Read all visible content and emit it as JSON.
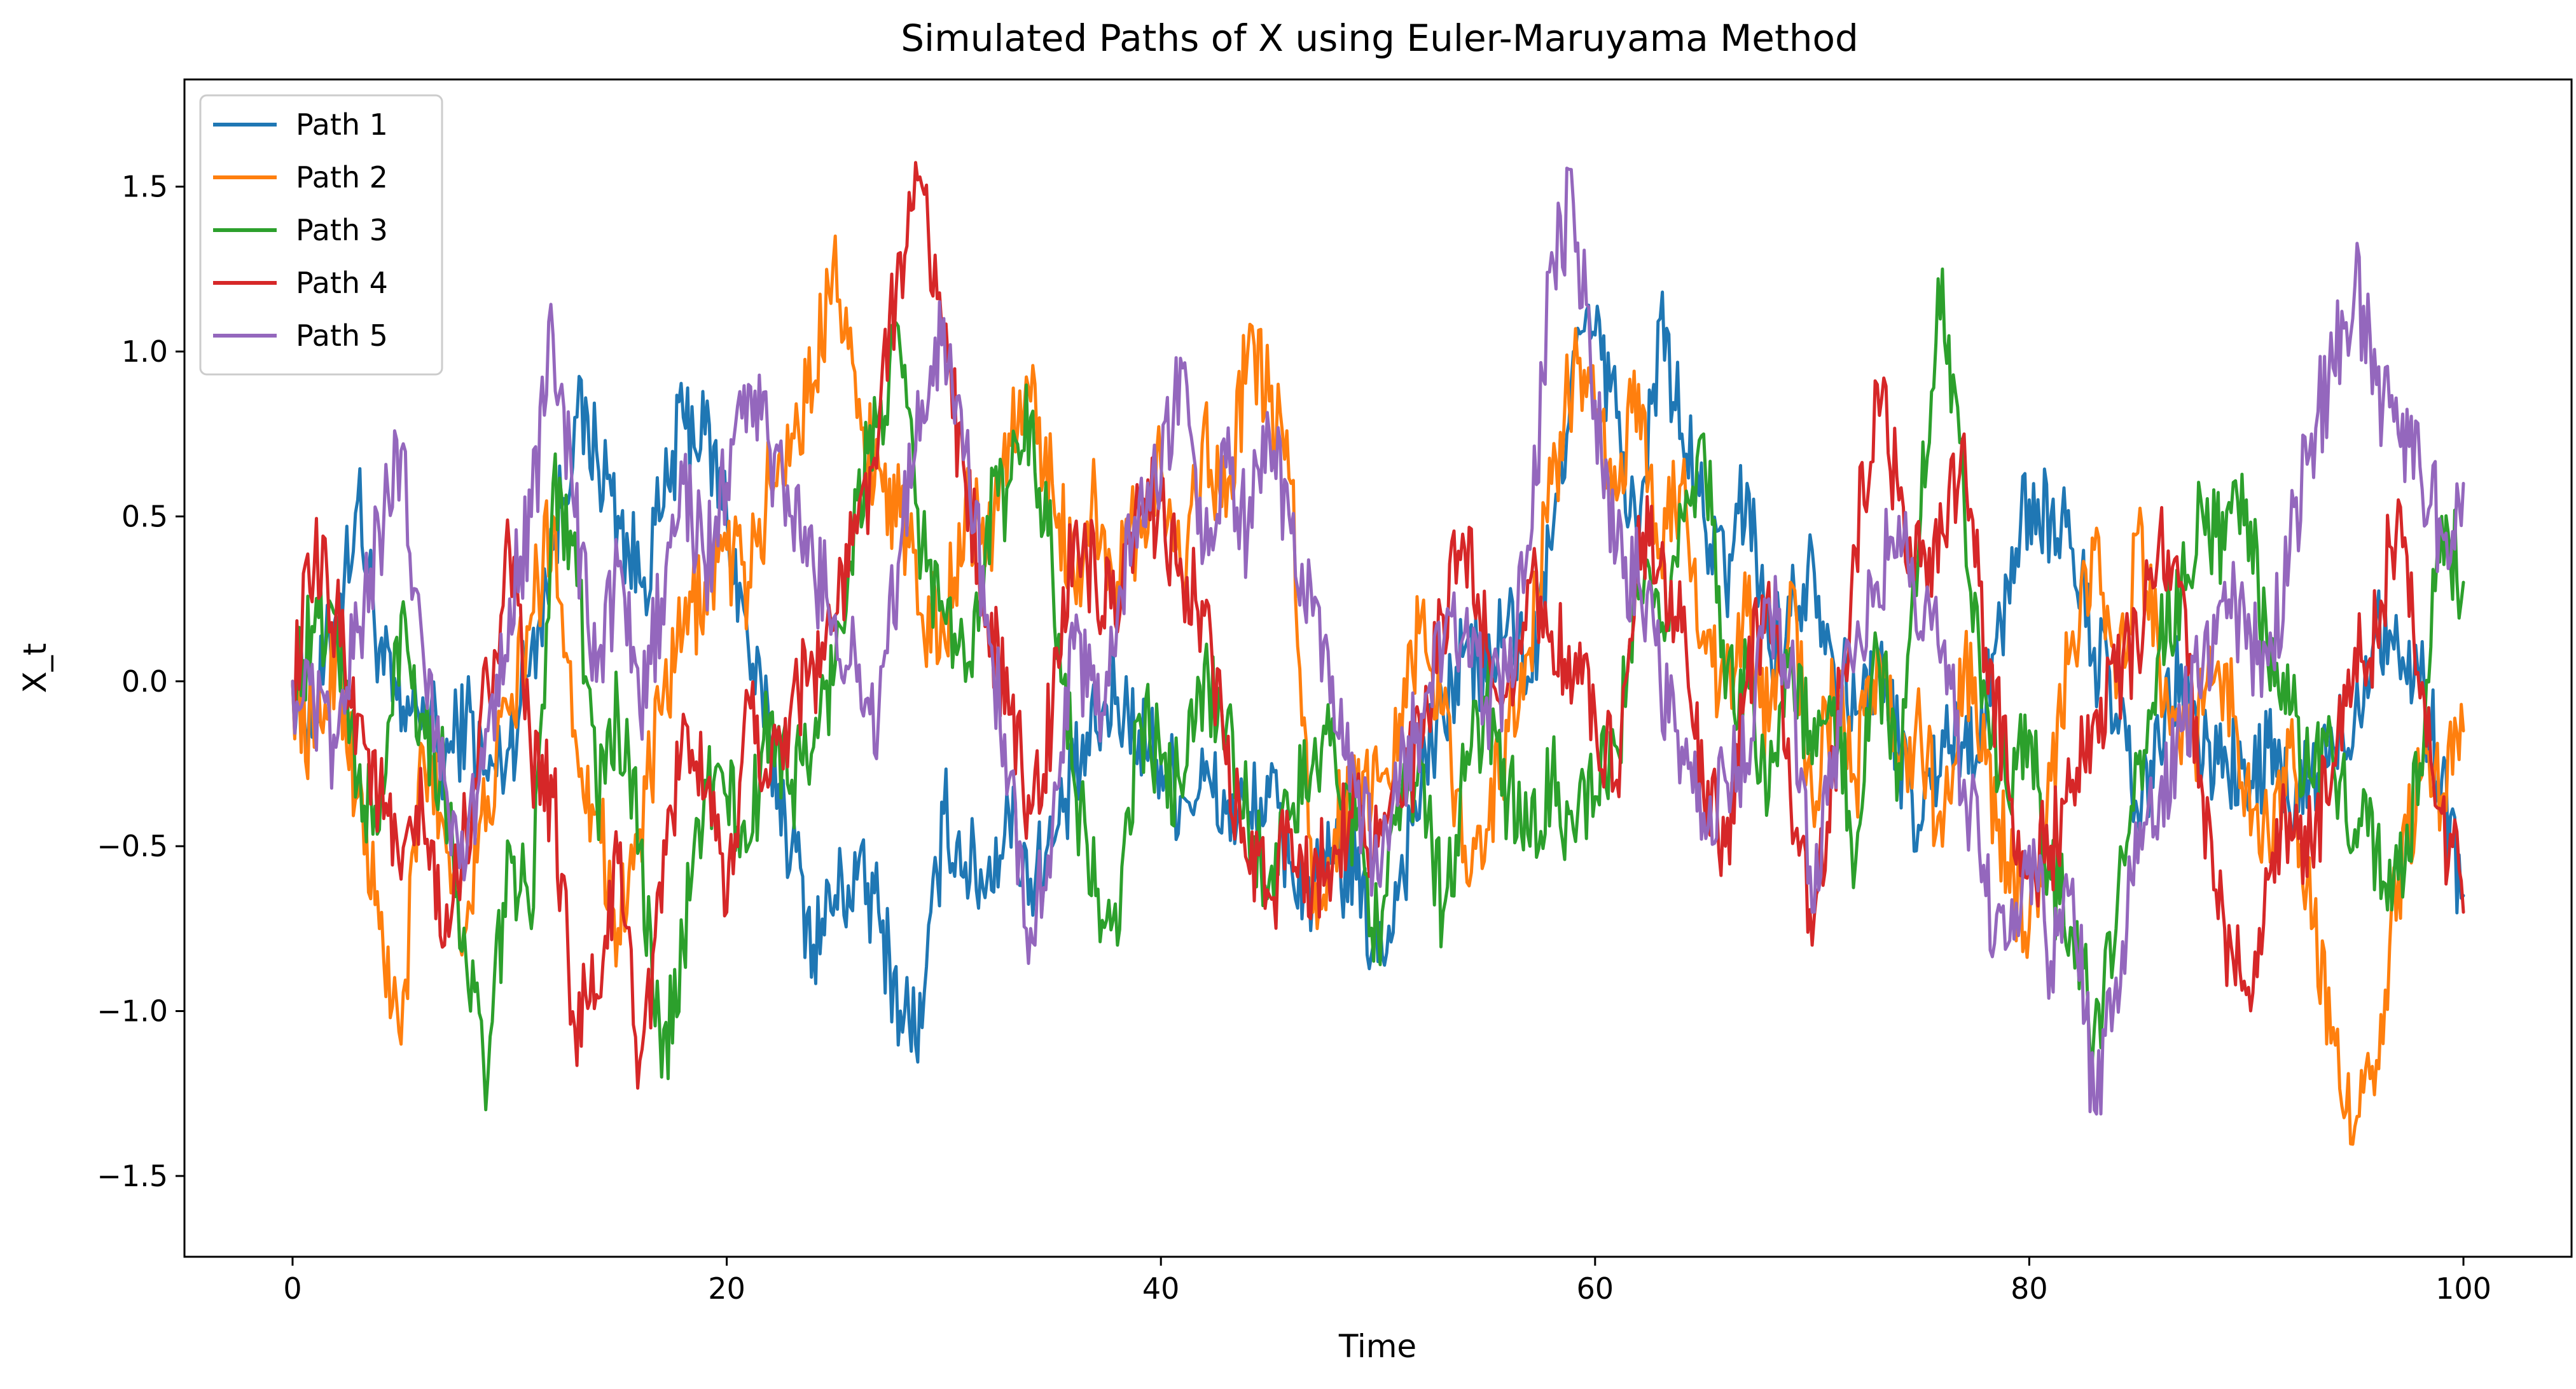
{
  "chart_data": {
    "type": "line",
    "title": "Simulated Paths of X using Euler-Maruyama Method",
    "xlabel": "Time",
    "ylabel": "X_t",
    "xlim": [
      -4.98,
      104.98
    ],
    "ylim": [
      -1.745,
      1.825
    ],
    "xticks": [
      {
        "value": 0,
        "label": "0"
      },
      {
        "value": 20,
        "label": "20"
      },
      {
        "value": 40,
        "label": "40"
      },
      {
        "value": 60,
        "label": "60"
      },
      {
        "value": 80,
        "label": "80"
      },
      {
        "value": 100,
        "label": "100"
      }
    ],
    "yticks": [
      {
        "value": -1.5,
        "label": "−1.5"
      },
      {
        "value": -1.0,
        "label": "−1.0"
      },
      {
        "value": -0.5,
        "label": "−0.5"
      },
      {
        "value": 0.0,
        "label": "0.0"
      },
      {
        "value": 0.5,
        "label": "0.5"
      },
      {
        "value": 1.0,
        "label": "1.0"
      },
      {
        "value": 1.5,
        "label": "1.5"
      }
    ],
    "grid": false,
    "legend_position": "top-left",
    "x": [
      0,
      1,
      2,
      3,
      4,
      5,
      6,
      7,
      8,
      9,
      10,
      11,
      12,
      13,
      14,
      15,
      16,
      17,
      18,
      19,
      20,
      21,
      22,
      23,
      24,
      25,
      26,
      27,
      28,
      29,
      30,
      31,
      32,
      33,
      34,
      35,
      36,
      37,
      38,
      39,
      40,
      41,
      42,
      43,
      44,
      45,
      46,
      47,
      48,
      49,
      50,
      51,
      52,
      53,
      54,
      55,
      56,
      57,
      58,
      59,
      60,
      61,
      62,
      63,
      64,
      65,
      66,
      67,
      68,
      69,
      70,
      71,
      72,
      73,
      74,
      75,
      76,
      77,
      78,
      79,
      80,
      81,
      82,
      83,
      84,
      85,
      86,
      87,
      88,
      89,
      90,
      91,
      92,
      93,
      94,
      95,
      96,
      97,
      98,
      99,
      100
    ],
    "series": [
      {
        "name": "Path 1",
        "color": "#1f77b4",
        "values": [
          0.0,
          -0.1,
          0.2,
          0.55,
          0.1,
          -0.15,
          -0.05,
          -0.25,
          -0.1,
          -0.3,
          -0.2,
          0.1,
          0.4,
          0.8,
          0.7,
          0.5,
          0.3,
          0.5,
          0.8,
          0.75,
          0.5,
          0.1,
          -0.2,
          -0.5,
          -0.8,
          -0.65,
          -0.6,
          -0.7,
          -1.0,
          -1.05,
          -0.4,
          -0.55,
          -0.6,
          -0.4,
          -0.6,
          -0.5,
          -0.3,
          -0.15,
          -0.05,
          -0.15,
          -0.25,
          -0.35,
          -0.3,
          -0.4,
          -0.4,
          -0.35,
          -0.55,
          -0.65,
          -0.55,
          -0.6,
          -0.85,
          -0.6,
          -0.3,
          -0.1,
          0.1,
          0.0,
          0.2,
          0.0,
          0.4,
          1.0,
          1.05,
          0.8,
          0.4,
          1.1,
          0.75,
          0.5,
          0.3,
          0.6,
          0.1,
          0.2,
          0.4,
          0.05,
          -0.1,
          0.05,
          -0.2,
          -0.45,
          -0.15,
          -0.2,
          -0.1,
          0.3,
          0.55,
          0.5,
          0.4,
          0.1,
          -0.1,
          -0.4,
          -0.2,
          0.05,
          -0.25,
          -0.2,
          -0.35,
          -0.2,
          -0.4,
          -0.3,
          -0.2,
          -0.1,
          0.2,
          0.1,
          0.0,
          -0.3,
          -0.65
        ]
      },
      {
        "name": "Path 2",
        "color": "#ff7f0e",
        "values": [
          0.0,
          -0.2,
          0.1,
          -0.35,
          -0.75,
          -1.1,
          -0.2,
          -0.45,
          -0.75,
          -0.35,
          -0.1,
          0.2,
          0.5,
          -0.15,
          -0.4,
          -0.75,
          -0.45,
          -0.1,
          0.15,
          0.3,
          0.4,
          0.3,
          0.6,
          0.75,
          0.9,
          1.35,
          0.8,
          0.65,
          0.5,
          0.2,
          0.15,
          0.55,
          0.4,
          0.75,
          0.85,
          0.6,
          0.3,
          0.55,
          0.3,
          0.5,
          0.65,
          0.3,
          0.8,
          0.5,
          1.0,
          0.85,
          0.6,
          -0.7,
          -0.45,
          -0.35,
          -0.3,
          -0.1,
          0.2,
          -0.1,
          -0.5,
          -0.45,
          -0.15,
          0.1,
          0.6,
          0.95,
          0.8,
          0.55,
          0.9,
          0.4,
          0.6,
          0.15,
          -0.05,
          0.2,
          -0.15,
          0.3,
          -0.35,
          -0.05,
          -0.3,
          0.1,
          -0.25,
          -0.15,
          -0.5,
          0.05,
          -0.25,
          -0.55,
          -0.75,
          -0.3,
          0.15,
          0.4,
          -0.05,
          0.45,
          0.05,
          -0.25,
          -0.1,
          0.05,
          -0.3,
          -0.45,
          -0.2,
          -0.75,
          -1.05,
          -1.35,
          -1.15,
          -0.6,
          -0.3,
          -0.35,
          -0.15
        ]
      },
      {
        "name": "Path 3",
        "color": "#2ca02c",
        "values": [
          0.0,
          0.15,
          0.2,
          -0.3,
          -0.45,
          0.2,
          -0.1,
          -0.3,
          -0.85,
          -1.2,
          -0.5,
          -0.75,
          0.6,
          0.45,
          -0.35,
          -0.1,
          -0.5,
          -1.2,
          -0.8,
          -0.3,
          -0.35,
          -0.5,
          -0.1,
          -0.3,
          -0.2,
          0.05,
          0.55,
          0.8,
          1.0,
          0.4,
          0.2,
          0.0,
          0.5,
          0.6,
          0.8,
          0.35,
          -0.3,
          -0.65,
          -0.8,
          -0.1,
          -0.25,
          -0.35,
          0.05,
          -0.15,
          -0.4,
          -0.6,
          -0.4,
          -0.25,
          -0.2,
          -0.45,
          -0.75,
          -0.45,
          -0.25,
          -0.7,
          -0.3,
          -0.05,
          -0.35,
          -0.5,
          -0.3,
          -0.45,
          -0.35,
          -0.2,
          0.25,
          0.15,
          0.5,
          0.75,
          -0.05,
          0.05,
          -0.35,
          0.1,
          -0.25,
          -0.05,
          -0.55,
          0.1,
          -0.25,
          0.5,
          1.25,
          0.55,
          -0.05,
          -0.35,
          -0.15,
          -0.6,
          -0.75,
          -1.05,
          -0.75,
          -0.25,
          0.1,
          0.3,
          0.5,
          0.4,
          0.55,
          0.05,
          -0.1,
          -0.3,
          -0.25,
          -0.45,
          -0.5,
          -0.6,
          -0.25,
          0.5,
          0.3
        ]
      },
      {
        "name": "Path 4",
        "color": "#d62728",
        "values": [
          0.0,
          0.35,
          0.2,
          -0.1,
          -0.35,
          -0.6,
          -0.4,
          -0.8,
          -0.45,
          0.0,
          0.4,
          -0.25,
          -0.35,
          -1.05,
          -0.95,
          -0.55,
          -1.15,
          -0.7,
          -0.1,
          -0.35,
          -0.7,
          -0.05,
          -0.3,
          -0.05,
          0.05,
          0.2,
          0.45,
          0.75,
          1.3,
          1.5,
          1.05,
          0.6,
          0.2,
          -0.1,
          -0.4,
          -0.1,
          0.45,
          0.3,
          0.15,
          0.5,
          0.55,
          0.3,
          0.2,
          -0.25,
          -0.55,
          -0.65,
          -0.45,
          -0.6,
          -0.5,
          -0.35,
          -0.5,
          -0.35,
          -0.2,
          0.2,
          0.4,
          0.1,
          0.0,
          0.3,
          0.15,
          0.0,
          -0.1,
          -0.3,
          0.5,
          0.35,
          0.15,
          -0.35,
          -0.5,
          0.0,
          0.3,
          -0.35,
          -0.8,
          -0.25,
          0.4,
          0.9,
          0.55,
          0.35,
          0.45,
          0.75,
          0.1,
          -0.3,
          -0.55,
          -0.5,
          -0.3,
          -0.1,
          0.0,
          0.1,
          0.45,
          0.3,
          -0.35,
          -0.75,
          -0.95,
          -0.6,
          -0.4,
          -0.5,
          -0.25,
          0.1,
          0.15,
          0.55,
          -0.05,
          -0.4,
          -0.7
        ]
      },
      {
        "name": "Path 5",
        "color": "#9467bd",
        "values": [
          0.0,
          -0.1,
          -0.2,
          0.15,
          0.45,
          0.7,
          0.1,
          -0.3,
          -0.55,
          -0.15,
          0.25,
          0.5,
          1.05,
          0.5,
          0.0,
          0.35,
          -0.1,
          0.25,
          0.6,
          0.35,
          0.6,
          0.9,
          0.7,
          0.5,
          0.35,
          0.2,
          0.0,
          -0.1,
          0.4,
          0.85,
          1.1,
          0.7,
          0.2,
          -0.3,
          -0.75,
          -0.45,
          0.1,
          -0.1,
          0.2,
          0.55,
          0.6,
          0.95,
          0.4,
          0.65,
          0.45,
          0.75,
          0.45,
          0.2,
          -0.15,
          -0.35,
          -0.6,
          -0.3,
          -0.1,
          0.1,
          0.15,
          -0.05,
          0.0,
          0.4,
          1.3,
          1.45,
          0.85,
          0.4,
          0.3,
          0.0,
          -0.2,
          -0.4,
          -0.3,
          -0.25,
          0.25,
          0.05,
          -0.7,
          -0.2,
          0.1,
          0.3,
          0.5,
          0.15,
          0.1,
          -0.3,
          -0.65,
          -0.8,
          -0.5,
          -0.85,
          -0.6,
          -1.3,
          -0.9,
          -0.55,
          -0.35,
          -0.15,
          0.05,
          0.3,
          0.1,
          0.05,
          0.4,
          0.75,
          0.95,
          1.2,
          0.9,
          0.75,
          0.65,
          0.45,
          0.6
        ]
      }
    ]
  }
}
